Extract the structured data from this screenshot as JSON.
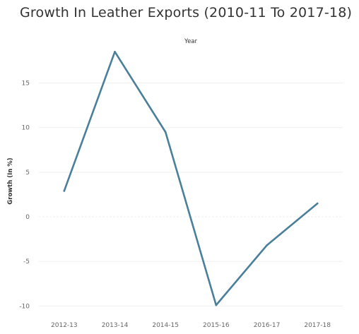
{
  "chart_data": {
    "type": "line",
    "title": "Growth In Leather Exports (2010-11 To 2017-18)",
    "xlabel": "Year",
    "ylabel": "Growth (In %)",
    "categories": [
      "2012-13",
      "2013-14",
      "2014-15",
      "2015-16",
      "2016-17",
      "2017-18"
    ],
    "series": [
      {
        "values": [
          2.9,
          18.5,
          9.5,
          -9.9,
          -3.2,
          1.5
        ]
      }
    ],
    "y_ticks": [
      15,
      10,
      5,
      0,
      -5,
      -10
    ],
    "ylim": [
      -11,
      19
    ],
    "grid": true,
    "line_color": "#4a7f9b",
    "grid_color": "#efefef"
  }
}
